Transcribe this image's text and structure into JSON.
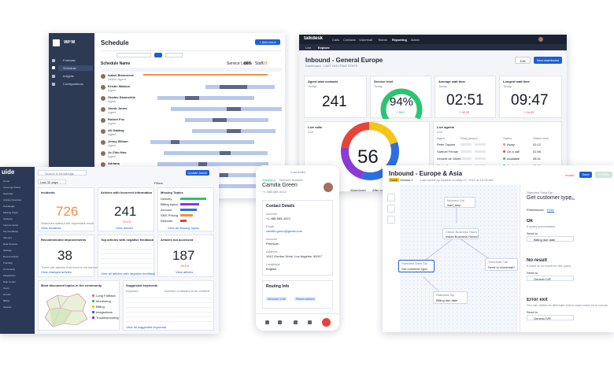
{
  "schedule": {
    "brand": "WFM",
    "title": "Schedule",
    "add_button": "+ Add event",
    "nav": [
      "Forecast",
      "Schedule",
      "Insights",
      "Configurations"
    ],
    "active_nav": "Schedule",
    "schedule_name_label": "Schedule Name",
    "service_level_label": "Service Level",
    "service_level_value": "86%",
    "staff_label": "Staff",
    "staff_value": "23",
    "agents": [
      {
        "name": "Isabel Blomroeve",
        "role": "Senior Agent"
      },
      {
        "name": "Kristin Watson",
        "role": "Agent"
      },
      {
        "name": "Gustav Saumerkin",
        "role": "Agent"
      },
      {
        "name": "Jacob Jones",
        "role": "Agent"
      },
      {
        "name": "Robert Fox",
        "role": "Agent"
      },
      {
        "name": "Ali Gabbay",
        "role": "Agent"
      },
      {
        "name": "Jenny Wilson",
        "role": "Agent"
      },
      {
        "name": "Jo Chin Hoo",
        "role": "Agent"
      },
      {
        "name": "Adriana",
        "role": "Agent"
      },
      {
        "name": "Strahana Tsilakou",
        "role": "Agent"
      },
      {
        "name": "Guy Hawkins",
        "role": "Agent"
      }
    ]
  },
  "talkdesk": {
    "brand": "talkdesk",
    "topnav": [
      "Calls",
      "Contacts",
      "Voicemail",
      "Teams",
      "Reporting",
      "Admin"
    ],
    "subnav": [
      "Live",
      "Explore"
    ],
    "title": "Inbound - General Europe",
    "subtitle": "Dashboard · LAST ROUTING STATS",
    "edit_button": "Edit",
    "new_dashboard_button": "New dashboard",
    "cards": [
      {
        "title": "Agent total contacts",
        "period": "Today",
        "value": "241"
      },
      {
        "title": "Service level",
        "period": "Today",
        "value": "94%",
        "delta": "+ 86%"
      },
      {
        "title": "Average wait time",
        "period": "Today",
        "value": "02:51",
        "delta": "+ 00:25"
      },
      {
        "title": "Longest wait time",
        "period": "Today",
        "value": "09:47",
        "delta": "+ 04:25"
      }
    ],
    "live_calls": {
      "title": "Live calls",
      "period": "Live",
      "value": "56",
      "legend": [
        "Abandoned",
        "After call work",
        "Busy"
      ]
    },
    "live_agents": {
      "title": "Live agents",
      "period": "Live",
      "columns": [
        "Agent",
        "Ring groups",
        "Status",
        "Status time"
      ],
      "rows": [
        {
          "agent": "Peter Taylors",
          "status": "Away",
          "time": "01:12"
        },
        {
          "agent": "Samuel Fernan",
          "status": "On a call",
          "time": "01:56"
        },
        {
          "agent": "Vincent de Oliveira",
          "status": "Available",
          "time": "08:41"
        },
        {
          "agent": "Claire Yamaguchi",
          "status": "Available",
          "time": "02:05"
        }
      ]
    },
    "gauge_fraction": 0.94,
    "colors": {
      "accent": "#1d5fd6",
      "green": "#2cc56f",
      "yellow": "#f5c518",
      "purple": "#8a3ad6",
      "red": "#e8433a",
      "blue": "#2d6fe0"
    }
  },
  "guide": {
    "brand": "uide",
    "search_placeholder": "Search in knowledge",
    "filter_label": "Last 30 days",
    "update_button": "Update Article",
    "filters_label": "Filters",
    "panels": [
      {
        "title": "Incidents",
        "value": "726",
        "note": "Searches without the requested result",
        "link": "View incidents"
      },
      {
        "title": "Articles with incorrect information",
        "value": "241",
        "delta": "+3.1%",
        "link": "View articles"
      },
      {
        "title": "Missing Topics",
        "link": "View all missing topics"
      },
      {
        "title": "Recommended improvements",
        "value": "38",
        "note": "There are articles that need to be improved",
        "link": "View changed articles"
      },
      {
        "title": "Top articles with negative feedback",
        "link": "View all articles with negative feedback"
      },
      {
        "title": "Articles not accessed",
        "value": "187",
        "delta": "+6.1%",
        "link": "View articles"
      }
    ],
    "missing_topics": [
      {
        "label": "Delivery",
        "value": 0.82
      },
      {
        "label": "Billing topics",
        "value": 0.6
      },
      {
        "label": "Account",
        "value": 0.52
      },
      {
        "label": "SMS Pricing",
        "value": 0.4
      },
      {
        "label": "Refunds",
        "value": 0.2
      }
    ],
    "map_title": "Most discussed topics in the community",
    "map_legend": [
      "Long Fallback",
      "Monitoring",
      "Billing",
      "Integrations",
      "Troubleshooting"
    ],
    "keywords_title": "Suggested keywords",
    "keywords_col1": "Keyword",
    "keywords_col2": "Number of articles to be created",
    "keywords_link": "View all suggested keywords",
    "sidebar": [
      "Home",
      "Incoming Tickets",
      "Searches",
      "Articles Overview",
      "Knowledge",
      "Missing Topics",
      "Category",
      "Improvements",
      "Top Feedback",
      "Inbound",
      "Data Sources",
      "Settings",
      "Recent Activity",
      "Trending",
      "Community",
      "Integrations",
      "Help Center",
      "Users",
      "Groups",
      "Billing",
      "Support"
    ]
  },
  "phone": {
    "time": "Connected",
    "status": "Speaking",
    "call_type": "Inbound Number",
    "contact": "Camilla Green",
    "number": "+1 488-665-4413",
    "section_details": "Contact Details",
    "fields": [
      {
        "label": "Number",
        "value": "+1 488-665-4413"
      },
      {
        "label": "Email",
        "value": "camilla.green@gmail.com"
      },
      {
        "label": "Account",
        "value": "Premium"
      },
      {
        "label": "Address",
        "value": "1912 Gordon Drive, Los Angeles, 90017"
      },
      {
        "label": "Language",
        "value": "English"
      }
    ],
    "section_routing": "Routing Info",
    "routing_tags": [
      "Inbound Call",
      "Reservations"
    ]
  },
  "flow": {
    "title": "Inbound - Europe & Asia",
    "draft_badge": "Draft",
    "version": "Version 1",
    "saved": "Last saved by System on May 27, 2019 at 10:25 AM",
    "invalid": "Invalid",
    "save_button": "Save",
    "publish_button": "Publish",
    "nodes": [
      {
        "kind": "Inbound Call",
        "label": "start_step"
      },
      {
        "kind": "Check Business Hours",
        "label": "Inside Business Hours?"
      },
      {
        "kind": "Standard Data Dip",
        "label": "Get customer type"
      },
      {
        "kind": "Voicemail Call",
        "label": "Send to Voicemail?"
      },
      {
        "kind": "Standard Dip",
        "label": "Billing due date"
      }
    ],
    "panel": {
      "kind": "Standard Data Dip",
      "title": "Get customer type",
      "edit": "Edit",
      "tabs": [
        "Preferences",
        "Exits"
      ],
      "ok_title": "Ok",
      "ok_desc": "If query successfully",
      "send_to": "Send to",
      "ok_target": "Billing due date",
      "no_result_title": "No result",
      "no_result_desc": "If there is no result for the query",
      "no_result_target": "Generic IVR",
      "error_title": "Error exit",
      "error_desc": "You can define an alternate exit in case some error occurs",
      "error_target": "Generic IVR"
    }
  }
}
